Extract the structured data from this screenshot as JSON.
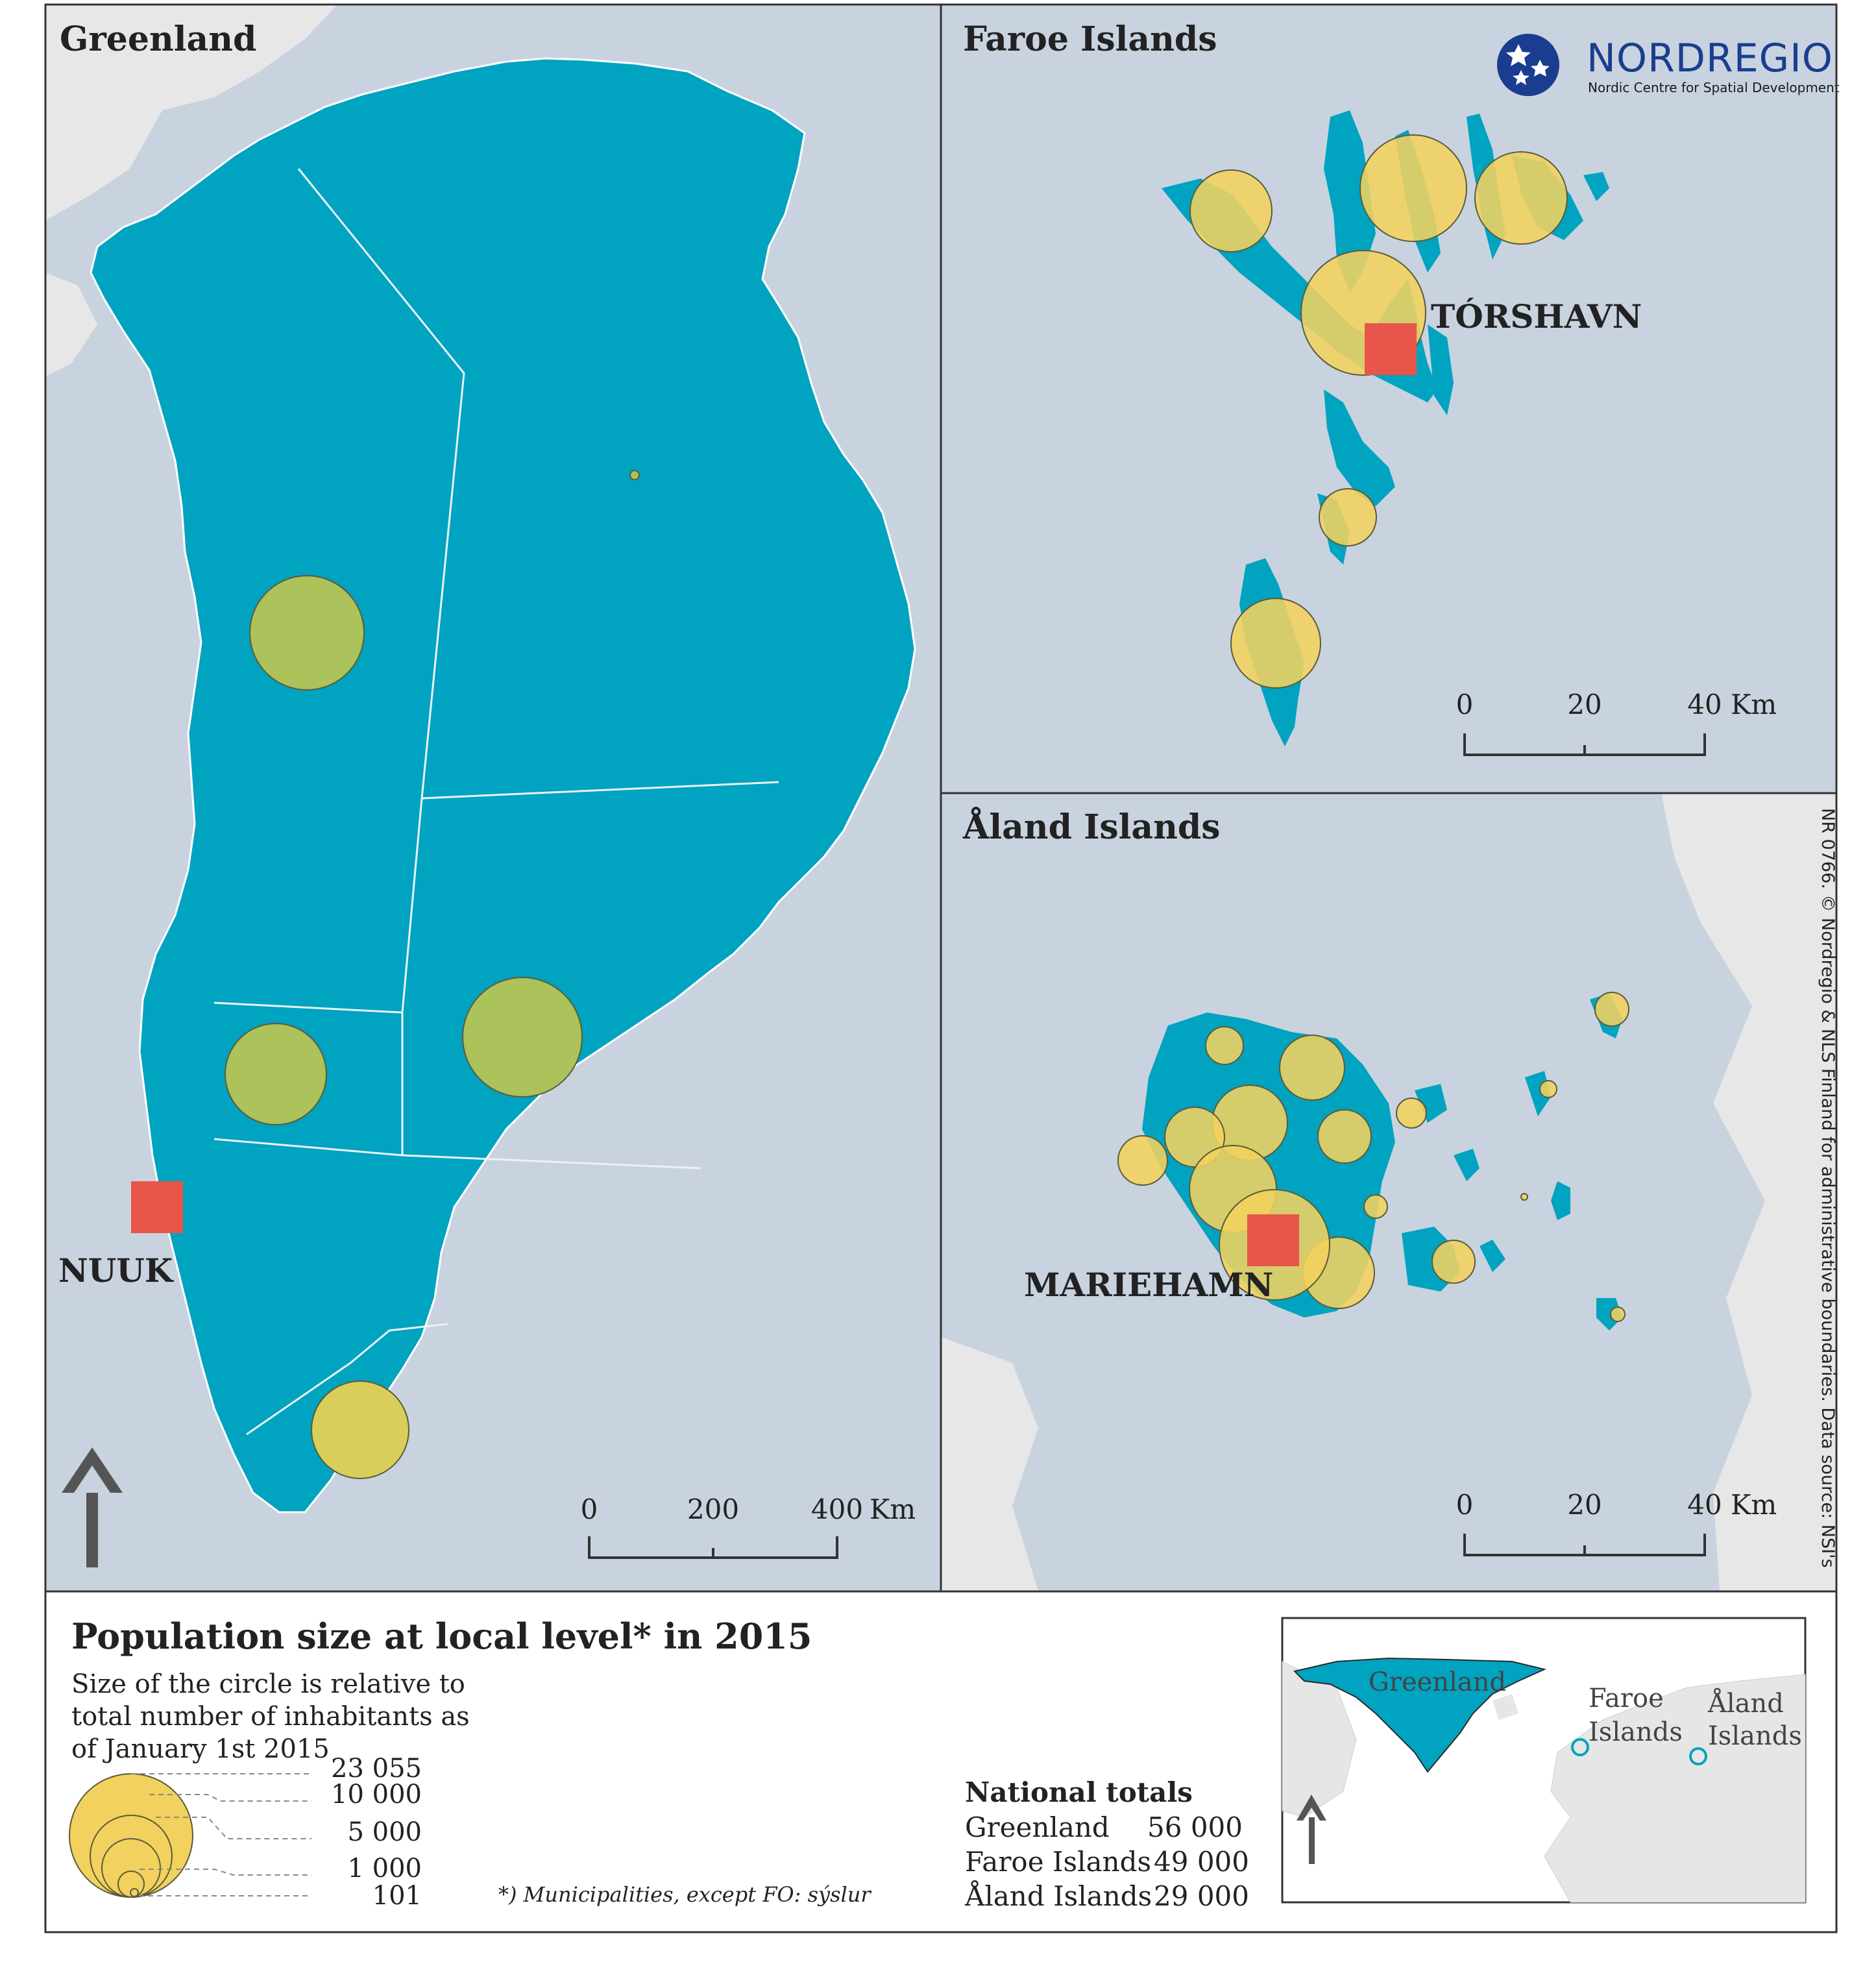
{
  "colors": {
    "sea": "#c8d3df",
    "land_other": "#e7e7e7",
    "land_focus": "#00a3c0",
    "boundary": "#f2f6f8",
    "circle_gl": "#acc25a",
    "circle": "#f2d15e",
    "circle_stroke": "#5b5b3a",
    "capital": "#e8554a",
    "brand": "#1a3d8f"
  },
  "panels": {
    "greenland": {
      "title": "Greenland",
      "capital": "NUUK",
      "scale": {
        "labels": [
          "0",
          "200",
          "400"
        ],
        "unit": "Km"
      }
    },
    "faroe": {
      "title": "Faroe Islands",
      "capital": "TÓRSHAVN",
      "scale": {
        "labels": [
          "0",
          "20",
          "40"
        ],
        "unit": "Km"
      }
    },
    "aland": {
      "title": "Åland Islands",
      "capital": "MARIEHAMN",
      "scale": {
        "labels": [
          "0",
          "20",
          "40"
        ],
        "unit": "Km"
      }
    }
  },
  "logo": {
    "name": "NORDREGIO",
    "subtitle": "Nordic Centre for Spatial Development"
  },
  "credit": "NR 0766. © Nordregio & NLS Finland for administrative boundaries. Data source: NSI's",
  "legend": {
    "title": "Population size at local level* in 2015",
    "description_lines": [
      "Size of the circle is relative to",
      "total number of inhabitants as",
      "of January 1st 2015"
    ],
    "values": [
      "23 055",
      "10 000",
      "5 000",
      "1 000",
      "101"
    ],
    "footnote": "*) Municipalities, except FO: sýslur"
  },
  "national_totals": {
    "title": "National totals",
    "rows": [
      {
        "name": "Greenland",
        "value": "56 000"
      },
      {
        "name": "Faroe Islands",
        "value": "49 000"
      },
      {
        "name": "Åland Islands",
        "value": "29 000"
      }
    ]
  },
  "inset": {
    "labels": {
      "greenland": "Greenland",
      "faroe": [
        "Faroe",
        "Islands"
      ],
      "aland": [
        "Åland",
        "Islands"
      ]
    }
  }
}
